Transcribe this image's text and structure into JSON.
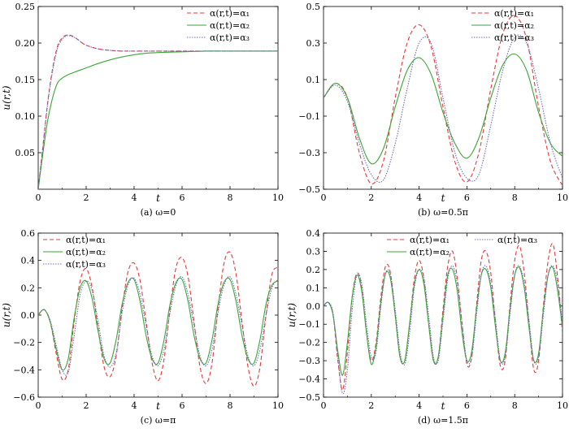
{
  "chart_data": [
    {
      "type": "line",
      "caption": "(a) ω=0",
      "xlabel": "t",
      "ylabel": "u(r,t)",
      "xlim": [
        0,
        10
      ],
      "ylim": [
        0,
        0.25
      ],
      "xticks": [
        0,
        2,
        4,
        6,
        8,
        10
      ],
      "yticks": [
        0.05,
        0.1,
        0.15,
        0.2,
        0.25
      ],
      "ytick_labels": [
        "0.05",
        "0.10",
        "0.15",
        "0.20",
        "0.25"
      ],
      "legend_position": "top-right",
      "series": [
        {
          "name": "α(r,t)=α₁",
          "color": "#e8393a",
          "dash": "dashed",
          "x": [
            0,
            0.2,
            0.4,
            0.6,
            0.8,
            1.0,
            1.2,
            1.4,
            1.6,
            1.8,
            2.0,
            2.5,
            3.0,
            3.5,
            4,
            5,
            6,
            7,
            8,
            9,
            10
          ],
          "y": [
            0,
            0.06,
            0.12,
            0.165,
            0.195,
            0.207,
            0.211,
            0.21,
            0.206,
            0.201,
            0.197,
            0.192,
            0.19,
            0.189,
            0.189,
            0.189,
            0.189,
            0.189,
            0.189,
            0.189,
            0.189
          ]
        },
        {
          "name": "α(r,t)=α₂",
          "color": "#3aa635",
          "dash": "solid",
          "x": [
            0,
            0.2,
            0.4,
            0.6,
            0.8,
            1.0,
            1.2,
            1.5,
            2.0,
            2.5,
            3.0,
            3.5,
            4.0,
            4.5,
            5.0,
            6.0,
            7.0,
            8.0,
            9.0,
            10.0
          ],
          "y": [
            0,
            0.05,
            0.095,
            0.125,
            0.145,
            0.152,
            0.156,
            0.16,
            0.166,
            0.172,
            0.177,
            0.181,
            0.184,
            0.186,
            0.187,
            0.188,
            0.189,
            0.189,
            0.189,
            0.189
          ]
        },
        {
          "name": "α(r,t)=α₃",
          "color": "#6d6dc4",
          "dash": "dotted",
          "x": [
            0,
            0.2,
            0.4,
            0.6,
            0.8,
            1.0,
            1.2,
            1.4,
            1.6,
            1.8,
            2.0,
            2.5,
            3.0,
            3.5,
            4,
            5,
            6,
            7,
            8,
            9,
            10
          ],
          "y": [
            0,
            0.058,
            0.118,
            0.162,
            0.192,
            0.205,
            0.21,
            0.209,
            0.206,
            0.201,
            0.197,
            0.192,
            0.19,
            0.189,
            0.189,
            0.189,
            0.189,
            0.189,
            0.189,
            0.189,
            0.189
          ]
        }
      ]
    },
    {
      "type": "line",
      "caption": "(b) ω=0.5π",
      "xlabel": "t",
      "ylabel": "",
      "xlim": [
        0,
        10
      ],
      "ylim": [
        -0.5,
        0.5
      ],
      "xticks": [
        0,
        2,
        4,
        6,
        8,
        10
      ],
      "yticks": [
        -0.5,
        -0.3,
        -0.1,
        0.1,
        0.3,
        0.5
      ],
      "ytick_labels": [
        "−0.5",
        "−0.3",
        "−0.1",
        "0.1",
        "0.3",
        "0.5"
      ],
      "legend_position": "top-right",
      "series": [
        {
          "name": "α(r,t)=α₁",
          "color": "#e8393a",
          "dash": "dashed",
          "x": [
            0,
            0.5,
            1.0,
            1.5,
            2.0,
            2.5,
            3.0,
            3.5,
            4.0,
            4.5,
            5.0,
            5.5,
            6.0,
            6.5,
            7.0,
            7.5,
            8.0,
            8.5,
            9.0,
            9.5,
            10.0
          ],
          "y": [
            0,
            0.08,
            0.0,
            -0.3,
            -0.47,
            -0.35,
            0.0,
            0.3,
            0.4,
            0.28,
            -0.05,
            -0.35,
            -0.46,
            -0.3,
            0.05,
            0.35,
            0.45,
            0.32,
            -0.05,
            -0.35,
            -0.48
          ]
        },
        {
          "name": "α(r,t)=α₂",
          "color": "#3aa635",
          "dash": "solid",
          "x": [
            0,
            0.5,
            1.0,
            1.5,
            2.0,
            2.5,
            3.0,
            3.5,
            4.0,
            4.5,
            5.0,
            5.5,
            6.0,
            6.5,
            7.0,
            7.5,
            8.0,
            8.5,
            9.0,
            9.5,
            10.0
          ],
          "y": [
            0,
            0.08,
            0.0,
            -0.22,
            -0.36,
            -0.28,
            -0.05,
            0.15,
            0.22,
            0.13,
            -0.08,
            -0.25,
            -0.33,
            -0.22,
            0.0,
            0.18,
            0.24,
            0.15,
            -0.08,
            -0.25,
            -0.32
          ]
        },
        {
          "name": "α(r,t)=α₃",
          "color": "#6d6dc4",
          "dash": "dotted",
          "x": [
            0,
            0.5,
            1.0,
            1.5,
            2.0,
            2.5,
            3.0,
            3.5,
            4.0,
            4.5,
            5.0,
            5.5,
            6.0,
            6.5,
            7.0,
            7.5,
            8.0,
            8.5,
            9.0,
            9.5,
            10.0
          ],
          "y": [
            0,
            0.07,
            -0.02,
            -0.25,
            -0.42,
            -0.45,
            -0.25,
            0.05,
            0.3,
            0.3,
            0.0,
            -0.3,
            -0.44,
            -0.42,
            -0.15,
            0.15,
            0.33,
            0.3,
            0.05,
            -0.25,
            -0.44
          ]
        }
      ]
    },
    {
      "type": "line",
      "caption": "(c) ω=π",
      "xlabel": "t",
      "ylabel": "u(r,t)",
      "xlim": [
        0,
        10
      ],
      "ylim": [
        -0.6,
        0.6
      ],
      "xticks": [
        0,
        2,
        4,
        6,
        8,
        10
      ],
      "yticks": [
        -0.6,
        -0.4,
        -0.2,
        0.0,
        0.2,
        0.4,
        0.6
      ],
      "ytick_labels": [
        "−0.6",
        "−0.4",
        "−0.2",
        "0.0",
        "0.2",
        "0.4",
        "0.6"
      ],
      "legend_position": "top-left",
      "series": [
        {
          "name": "α(r,t)=α₁",
          "color": "#e8393a",
          "dash": "dashed",
          "x": [
            0,
            0.25,
            0.5,
            0.75,
            1.0,
            1.25,
            1.5,
            1.75,
            2.0,
            2.25,
            2.5,
            2.75,
            3.0,
            3.25,
            3.5,
            3.75,
            4.0,
            4.25,
            4.5,
            4.75,
            5.0,
            5.25,
            5.5,
            5.75,
            6.0,
            6.25,
            6.5,
            6.75,
            7.0,
            7.25,
            7.5,
            7.75,
            8.0,
            8.25,
            8.5,
            8.75,
            9.0,
            9.25,
            9.5,
            9.75,
            10.0
          ],
          "y": [
            0,
            0.04,
            -0.05,
            -0.28,
            -0.47,
            -0.4,
            -0.05,
            0.25,
            0.34,
            0.2,
            -0.1,
            -0.38,
            -0.45,
            -0.3,
            0.05,
            0.32,
            0.38,
            0.25,
            -0.05,
            -0.35,
            -0.48,
            -0.32,
            0.05,
            0.35,
            0.42,
            0.28,
            -0.05,
            -0.38,
            -0.5,
            -0.35,
            0.05,
            0.38,
            0.46,
            0.3,
            -0.05,
            -0.38,
            -0.52,
            -0.38,
            0.0,
            0.3,
            0.35
          ]
        },
        {
          "name": "α(r,t)=α₂",
          "color": "#3aa635",
          "dash": "solid",
          "x": [
            0,
            0.25,
            0.5,
            0.75,
            1.0,
            1.25,
            1.5,
            1.75,
            2.0,
            2.25,
            2.5,
            2.75,
            3.0,
            3.25,
            3.5,
            3.75,
            4.0,
            4.25,
            4.5,
            4.75,
            5.0,
            5.25,
            5.5,
            5.75,
            6.0,
            6.25,
            6.5,
            6.75,
            7.0,
            7.25,
            7.5,
            7.75,
            8.0,
            8.25,
            8.5,
            8.75,
            9.0,
            9.25,
            9.5,
            9.75,
            10.0
          ],
          "y": [
            0,
            0.04,
            -0.05,
            -0.25,
            -0.4,
            -0.32,
            -0.02,
            0.2,
            0.25,
            0.12,
            -0.12,
            -0.32,
            -0.35,
            -0.18,
            0.08,
            0.24,
            0.26,
            0.1,
            -0.15,
            -0.32,
            -0.35,
            -0.18,
            0.08,
            0.24,
            0.26,
            0.1,
            -0.15,
            -0.32,
            -0.35,
            -0.18,
            0.08,
            0.24,
            0.26,
            0.1,
            -0.15,
            -0.32,
            -0.35,
            -0.18,
            0.08,
            0.22,
            0.25
          ]
        },
        {
          "name": "α(r,t)=α₃",
          "color": "#6d6dc4",
          "dash": "dotted",
          "x": [
            0,
            0.25,
            0.5,
            0.75,
            1.0,
            1.25,
            1.5,
            1.75,
            2.0,
            2.25,
            2.5,
            2.75,
            3.0,
            3.25,
            3.5,
            3.75,
            4.0,
            4.25,
            4.5,
            4.75,
            5.0,
            5.25,
            5.5,
            5.75,
            6.0,
            6.25,
            6.5,
            6.75,
            7.0,
            7.25,
            7.5,
            7.75,
            8.0,
            8.25,
            8.5,
            8.75,
            9.0,
            9.25,
            9.5,
            9.75,
            10.0
          ],
          "y": [
            0,
            0.04,
            -0.04,
            -0.22,
            -0.4,
            -0.42,
            -0.15,
            0.15,
            0.25,
            0.18,
            -0.05,
            -0.3,
            -0.38,
            -0.28,
            0.02,
            0.22,
            0.27,
            0.15,
            -0.08,
            -0.3,
            -0.37,
            -0.25,
            0.02,
            0.22,
            0.28,
            0.15,
            -0.08,
            -0.3,
            -0.37,
            -0.25,
            0.02,
            0.22,
            0.28,
            0.15,
            -0.08,
            -0.3,
            -0.37,
            -0.25,
            0.0,
            0.2,
            0.26
          ]
        }
      ]
    },
    {
      "type": "line",
      "caption": "(d) ω=1.5π",
      "xlabel": "t",
      "ylabel": "u(r,t)",
      "xlim": [
        0,
        10
      ],
      "ylim": [
        -0.5,
        0.4
      ],
      "xticks": [
        0,
        2,
        4,
        6,
        8,
        10
      ],
      "yticks": [
        -0.5,
        -0.4,
        -0.3,
        -0.2,
        -0.1,
        0.0,
        0.1,
        0.2,
        0.3,
        0.4
      ],
      "ytick_labels": [
        "−0.5",
        "−0.4",
        "−0.3",
        "−0.2",
        "−0.1",
        "0.0",
        "0.1",
        "0.2",
        "0.3",
        "0.4"
      ],
      "legend_position": "top",
      "series": [
        {
          "name": "α(r,t)=α₁",
          "color": "#e8393a",
          "dash": "dashed",
          "x": [
            0,
            0.2,
            0.4,
            0.6,
            0.8,
            1.0,
            1.2,
            1.4,
            1.6,
            1.8,
            2.0,
            2.2,
            2.4,
            2.6,
            2.8,
            3.0,
            3.2,
            3.4,
            3.6,
            3.8,
            4.0,
            4.2,
            4.4,
            4.6,
            4.8,
            5.0,
            5.2,
            5.4,
            5.6,
            5.8,
            6.0,
            6.2,
            6.4,
            6.6,
            6.8,
            7.0,
            7.2,
            7.4,
            7.6,
            7.8,
            8.0,
            8.2,
            8.4,
            8.6,
            8.8,
            9.0,
            9.2,
            9.4,
            9.6,
            9.8,
            10.0
          ],
          "y": [
            0,
            0.02,
            -0.05,
            -0.3,
            -0.46,
            -0.25,
            0.05,
            0.18,
            0.1,
            -0.15,
            -0.3,
            -0.2,
            0.05,
            0.22,
            0.18,
            -0.05,
            -0.28,
            -0.3,
            -0.1,
            0.15,
            0.25,
            0.15,
            -0.1,
            -0.3,
            -0.28,
            -0.02,
            0.22,
            0.3,
            0.15,
            -0.1,
            -0.32,
            -0.28,
            0.0,
            0.25,
            0.3,
            0.18,
            -0.1,
            -0.33,
            -0.3,
            0.0,
            0.25,
            0.33,
            0.18,
            -0.1,
            -0.35,
            -0.3,
            0.0,
            0.25,
            0.34,
            0.15,
            -0.15
          ]
        },
        {
          "name": "α(r,t)=α₂",
          "color": "#3aa635",
          "dash": "solid",
          "x": [
            0,
            0.2,
            0.4,
            0.6,
            0.8,
            1.0,
            1.2,
            1.4,
            1.6,
            1.8,
            2.0,
            2.2,
            2.4,
            2.6,
            2.8,
            3.0,
            3.2,
            3.4,
            3.6,
            3.8,
            4.0,
            4.2,
            4.4,
            4.6,
            4.8,
            5.0,
            5.2,
            5.4,
            5.6,
            5.8,
            6.0,
            6.2,
            6.4,
            6.6,
            6.8,
            7.0,
            7.2,
            7.4,
            7.6,
            7.8,
            8.0,
            8.2,
            8.4,
            8.6,
            8.8,
            9.0,
            9.2,
            9.4,
            9.6,
            9.8,
            10.0
          ],
          "y": [
            0,
            0.02,
            -0.05,
            -0.25,
            -0.38,
            -0.2,
            0.05,
            0.17,
            0.08,
            -0.15,
            -0.32,
            -0.22,
            0.02,
            0.18,
            0.15,
            -0.05,
            -0.28,
            -0.3,
            -0.1,
            0.12,
            0.2,
            0.12,
            -0.1,
            -0.3,
            -0.28,
            -0.05,
            0.17,
            0.2,
            0.08,
            -0.15,
            -0.3,
            -0.25,
            -0.02,
            0.17,
            0.2,
            0.1,
            -0.12,
            -0.3,
            -0.26,
            -0.02,
            0.17,
            0.21,
            0.1,
            -0.12,
            -0.3,
            -0.26,
            -0.02,
            0.17,
            0.21,
            0.08,
            -0.12
          ]
        },
        {
          "name": "α(r,t)=α₃",
          "color": "#6d6dc4",
          "dash": "dotted",
          "x": [
            0,
            0.2,
            0.4,
            0.6,
            0.8,
            1.0,
            1.2,
            1.4,
            1.6,
            1.8,
            2.0,
            2.2,
            2.4,
            2.6,
            2.8,
            3.0,
            3.2,
            3.4,
            3.6,
            3.8,
            4.0,
            4.2,
            4.4,
            4.6,
            4.8,
            5.0,
            5.2,
            5.4,
            5.6,
            5.8,
            6.0,
            6.2,
            6.4,
            6.6,
            6.8,
            7.0,
            7.2,
            7.4,
            7.6,
            7.8,
            8.0,
            8.2,
            8.4,
            8.6,
            8.8,
            9.0,
            9.2,
            9.4,
            9.6,
            9.8,
            10.0
          ],
          "y": [
            0,
            0.02,
            -0.04,
            -0.28,
            -0.48,
            -0.35,
            -0.02,
            0.17,
            0.12,
            -0.1,
            -0.28,
            -0.25,
            0.0,
            0.18,
            0.17,
            -0.02,
            -0.25,
            -0.32,
            -0.15,
            0.1,
            0.2,
            0.15,
            -0.05,
            -0.28,
            -0.3,
            -0.08,
            0.15,
            0.22,
            0.12,
            -0.1,
            -0.3,
            -0.28,
            -0.05,
            0.17,
            0.22,
            0.12,
            -0.08,
            -0.3,
            -0.28,
            -0.05,
            0.17,
            0.22,
            0.12,
            -0.08,
            -0.3,
            -0.28,
            -0.05,
            0.17,
            0.22,
            0.12,
            -0.1
          ]
        }
      ]
    }
  ]
}
